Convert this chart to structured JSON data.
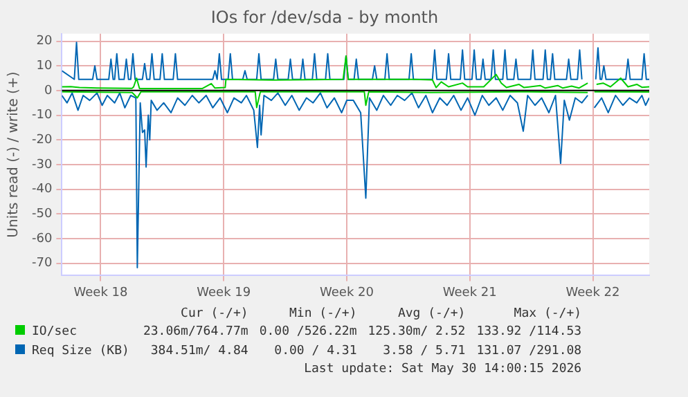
{
  "chart_data": {
    "type": "line",
    "title": "IOs for /dev/sda - by month",
    "ylabel": "Units read (-) / write (+)",
    "xlim": [
      "2026-04-28T08:00",
      "2026-05-31T18:00"
    ],
    "xticks": [
      {
        "value": "2026-04-30T13:00",
        "label": "Week 18"
      },
      {
        "value": "2026-05-07T13:00",
        "label": "Week 19"
      },
      {
        "value": "2026-05-14T13:00",
        "label": "Week 20"
      },
      {
        "value": "2026-05-21T13:00",
        "label": "Week 21"
      },
      {
        "value": "2026-05-28T13:00",
        "label": "Week 22"
      }
    ],
    "ylim": [
      -75,
      23
    ],
    "yticks": [
      -70,
      -60,
      -50,
      -40,
      -30,
      -20,
      -10,
      0,
      10,
      20
    ],
    "grid": true,
    "legend": "bottom",
    "ref_lines": [
      {
        "axis": "y",
        "value": 0,
        "color": "#000000"
      }
    ],
    "series": [
      {
        "color": "#00cc00",
        "x": [
          "2026-04-28T08:00",
          "2026-05-02T08:00",
          "2026-05-02T15:00",
          "2026-05-02T20:00",
          "2026-05-09T08:00",
          "2026-05-09T10:00",
          "2026-05-09T15:00",
          "2026-05-15T13:00",
          "2026-05-15T15:00",
          "2026-05-15T19:00",
          "2026-05-19T08:00",
          "2026-05-24T08:00",
          "2026-05-28T06:00",
          "2026-05-28T10:00",
          "2026-05-28T15:00",
          "2026-05-31T18:00"
        ],
        "values": [
          -0.5,
          -0.8,
          -3,
          -0.5,
          -0.5,
          -6.9,
          -0.5,
          -0.5,
          -6,
          -0.5,
          -0.8,
          -0.5,
          -0.8,
          null,
          -0.5,
          -0.6
        ]
      },
      {
        "name": "IO/sec",
        "color": "#00cc00",
        "x": [
          "2026-04-28T08:00",
          "2026-04-28T20:00",
          "2026-04-29T08:00",
          "2026-04-30T08:00",
          "2026-05-02T08:00",
          "2026-05-02T10:00",
          "2026-05-02T14:00",
          "2026-05-02T18:00",
          "2026-05-04T08:00",
          "2026-05-06T08:00",
          "2026-05-06T20:00",
          "2026-05-07T01:00",
          "2026-05-07T15:00",
          "2026-05-07T16:00",
          "2026-05-10T08:00",
          "2026-05-14T08:00",
          "2026-05-14T12:00",
          "2026-05-14T15:00",
          "2026-05-18T08:00",
          "2026-05-19T10:00",
          "2026-05-19T15:00",
          "2026-05-19T22:00",
          "2026-05-20T08:00",
          "2026-05-21T03:00",
          "2026-05-21T10:00",
          "2026-05-22T08:00",
          "2026-05-23T01:00",
          "2026-05-23T08:00",
          "2026-05-23T15:00",
          "2026-05-24T08:00",
          "2026-05-24T15:00",
          "2026-05-25T13:00",
          "2026-05-25T20:00",
          "2026-05-26T13:00",
          "2026-05-26T20:00",
          "2026-05-27T08:00",
          "2026-05-27T18:00",
          "2026-05-28T06:00",
          "2026-05-28T10:00",
          "2026-05-28T18:00",
          "2026-05-29T03:00",
          "2026-05-29T13:00",
          "2026-05-30T03:00",
          "2026-05-30T13:00",
          "2026-05-31T01:00",
          "2026-05-31T08:00",
          "2026-05-31T18:00"
        ],
        "values": [
          1.5,
          1.6,
          1.2,
          1.0,
          0.9,
          1.5,
          5,
          0.8,
          0.8,
          0.8,
          2.8,
          1,
          1.2,
          4.5,
          4.2,
          4.5,
          14,
          4.5,
          4.5,
          4.3,
          1.2,
          3.5,
          1.5,
          3,
          1.5,
          1.5,
          6.5,
          3,
          1.2,
          2.5,
          1.2,
          2,
          1,
          2,
          1,
          1.8,
          1,
          3,
          null,
          2.5,
          3,
          1.5,
          5,
          1.5,
          2.5,
          1.3,
          1.5
        ]
      },
      {
        "color": "#0066b3",
        "x": [
          "2026-04-28T08:00",
          "2026-04-28T15:00",
          "2026-04-28T22:00",
          "2026-04-29T06:00",
          "2026-04-29T13:00",
          "2026-04-29T22:00",
          "2026-04-30T08:00",
          "2026-04-30T15:00",
          "2026-04-30T22:00",
          "2026-05-01T08:00",
          "2026-05-01T15:00",
          "2026-05-01T22:00",
          "2026-05-02T06:00",
          "2026-05-02T13:00",
          "2026-05-02T15:00",
          "2026-05-02T19:00",
          "2026-05-02T22:00",
          "2026-05-03T01:00",
          "2026-05-03T03:00",
          "2026-05-03T06:00",
          "2026-05-03T08:00",
          "2026-05-03T10:00",
          "2026-05-03T18:00",
          "2026-05-04T03:00",
          "2026-05-04T13:00",
          "2026-05-04T22:00",
          "2026-05-05T08:00",
          "2026-05-05T18:00",
          "2026-05-06T03:00",
          "2026-05-06T13:00",
          "2026-05-06T22:00",
          "2026-05-07T08:00",
          "2026-05-07T18:00",
          "2026-05-08T03:00",
          "2026-05-08T13:00",
          "2026-05-08T20:00",
          "2026-05-09T06:00",
          "2026-05-09T11:00",
          "2026-05-09T14:00",
          "2026-05-09T16:00",
          "2026-05-09T20:00",
          "2026-05-10T06:00",
          "2026-05-10T15:00",
          "2026-05-11T01:00",
          "2026-05-11T10:00",
          "2026-05-11T20:00",
          "2026-05-12T06:00",
          "2026-05-12T15:00",
          "2026-05-13T01:00",
          "2026-05-13T10:00",
          "2026-05-13T20:00",
          "2026-05-14T06:00",
          "2026-05-14T13:00",
          "2026-05-14T22:00",
          "2026-05-15T08:00",
          "2026-05-15T15:00",
          "2026-05-15T20:00",
          "2026-05-16T06:00",
          "2026-05-16T15:00",
          "2026-05-17T01:00",
          "2026-05-17T10:00",
          "2026-05-17T20:00",
          "2026-05-18T06:00",
          "2026-05-18T15:00",
          "2026-05-19T01:00",
          "2026-05-19T10:00",
          "2026-05-19T20:00",
          "2026-05-20T06:00",
          "2026-05-20T15:00",
          "2026-05-21T01:00",
          "2026-05-21T10:00",
          "2026-05-21T20:00",
          "2026-05-22T06:00",
          "2026-05-22T15:00",
          "2026-05-23T01:00",
          "2026-05-23T10:00",
          "2026-05-23T20:00",
          "2026-05-24T06:00",
          "2026-05-24T14:00",
          "2026-05-24T20:00",
          "2026-05-25T06:00",
          "2026-05-25T15:00",
          "2026-05-26T01:00",
          "2026-05-26T10:00",
          "2026-05-26T17:00",
          "2026-05-26T22:00",
          "2026-05-27T05:00",
          "2026-05-27T13:00",
          "2026-05-27T22:00",
          "2026-05-28T06:00",
          "2026-05-28T10:00",
          "2026-05-28T15:00",
          "2026-05-29T01:00",
          "2026-05-29T10:00",
          "2026-05-29T20:00",
          "2026-05-30T06:00",
          "2026-05-30T15:00",
          "2026-05-31T01:00",
          "2026-05-31T08:00",
          "2026-05-31T13:00",
          "2026-05-31T18:00"
        ],
        "values": [
          -2,
          -5,
          -1,
          -8,
          -2,
          -4,
          -1,
          -6,
          -2,
          -5,
          -1,
          -7,
          -2,
          -3,
          -71.8,
          -5,
          -17,
          -16,
          -31,
          -10,
          -20,
          -4,
          -8,
          -5,
          -9,
          -3,
          -6,
          -2,
          -5,
          -2,
          -7,
          -3,
          -9,
          -3,
          -5,
          -2,
          -8,
          -23.1,
          -6,
          -18,
          -2,
          -4,
          -1,
          -6,
          -2,
          -8,
          -3,
          -5,
          -1,
          -7,
          -3,
          -9,
          -4,
          -4,
          -9,
          -43.6,
          -3,
          -8,
          -2,
          -6,
          -2,
          -4,
          -1,
          -7,
          -2,
          -9,
          -3,
          -6,
          -2,
          -8,
          -3,
          -10,
          -2,
          -6,
          -3,
          -8,
          -2,
          -5,
          -16.5,
          -2,
          -6,
          -3,
          -9,
          -2,
          -29.5,
          -4,
          -12,
          -3,
          -5,
          -2,
          null,
          -7,
          -3,
          -9,
          -2,
          -6,
          -3,
          -5,
          -2,
          -6,
          -3
        ]
      },
      {
        "name": "Req Size (KB)",
        "color": "#0066b3",
        "x": [
          "2026-04-28T08:00",
          "2026-04-29T01:00",
          "2026-04-29T04:00",
          "2026-04-29T07:00",
          "2026-04-30T02:00",
          "2026-04-30T05:00",
          "2026-04-30T08:00",
          "2026-05-01T00:00",
          "2026-05-01T03:00",
          "2026-05-01T06:00",
          "2026-05-01T08:00",
          "2026-05-01T11:00",
          "2026-05-01T14:00",
          "2026-05-01T21:00",
          "2026-05-02T00:00",
          "2026-05-02T03:00",
          "2026-05-02T06:00",
          "2026-05-02T09:00",
          "2026-05-02T12:00",
          "2026-05-02T22:00",
          "2026-05-03T01:00",
          "2026-05-03T04:00",
          "2026-05-03T08:00",
          "2026-05-03T11:00",
          "2026-05-03T14:00",
          "2026-05-03T22:00",
          "2026-05-04T01:00",
          "2026-05-04T04:00",
          "2026-05-04T16:00",
          "2026-05-04T19:00",
          "2026-05-04T22:00",
          "2026-05-06T22:00",
          "2026-05-07T01:00",
          "2026-05-07T04:00",
          "2026-05-07T07:00",
          "2026-05-07T10:00",
          "2026-05-07T19:00",
          "2026-05-07T22:00",
          "2026-05-08T01:00",
          "2026-05-08T15:00",
          "2026-05-08T18:00",
          "2026-05-08T21:00",
          "2026-05-09T10:00",
          "2026-05-09T13:00",
          "2026-05-09T16:00",
          "2026-05-10T09:00",
          "2026-05-10T12:00",
          "2026-05-10T15:00",
          "2026-05-11T05:00",
          "2026-05-11T08:00",
          "2026-05-11T11:00",
          "2026-05-11T22:00",
          "2026-05-12T01:00",
          "2026-05-12T04:00",
          "2026-05-12T14:00",
          "2026-05-12T17:00",
          "2026-05-12T20:00",
          "2026-05-13T08:00",
          "2026-05-13T11:00",
          "2026-05-13T14:00",
          "2026-05-14T09:00",
          "2026-05-14T12:00",
          "2026-05-14T15:00",
          "2026-05-14T23:00",
          "2026-05-15T02:00",
          "2026-05-15T05:00",
          "2026-05-16T00:00",
          "2026-05-16T03:00",
          "2026-05-16T06:00",
          "2026-05-16T17:00",
          "2026-05-16T20:00",
          "2026-05-16T23:00",
          "2026-05-18T02:00",
          "2026-05-18T05:00",
          "2026-05-18T08:00",
          "2026-05-19T10:00",
          "2026-05-19T13:00",
          "2026-05-19T16:00",
          "2026-05-20T05:00",
          "2026-05-20T08:00",
          "2026-05-20T11:00",
          "2026-05-21T00:00",
          "2026-05-21T03:00",
          "2026-05-21T06:00",
          "2026-05-21T16:00",
          "2026-05-21T19:00",
          "2026-05-21T22:00",
          "2026-05-22T04:00",
          "2026-05-22T07:00",
          "2026-05-22T10:00",
          "2026-05-22T18:00",
          "2026-05-22T21:00",
          "2026-05-23T00:00",
          "2026-05-23T10:00",
          "2026-05-23T13:00",
          "2026-05-23T16:00",
          "2026-05-24T01:00",
          "2026-05-24T04:00",
          "2026-05-24T07:00",
          "2026-05-25T00:00",
          "2026-05-25T03:00",
          "2026-05-25T06:00",
          "2026-05-25T17:00",
          "2026-05-25T20:00",
          "2026-05-25T23:00",
          "2026-05-26T03:00",
          "2026-05-26T06:00",
          "2026-05-26T09:00",
          "2026-05-27T01:00",
          "2026-05-27T04:00",
          "2026-05-27T07:00",
          "2026-05-27T16:00",
          "2026-05-27T19:00",
          "2026-05-27T22:00",
          "2026-05-28T08:00",
          "2026-05-28T17:00",
          "2026-05-28T20:00",
          "2026-05-28T23:00",
          "2026-05-29T01:00",
          "2026-05-29T04:00",
          "2026-05-29T07:00",
          "2026-05-30T10:00",
          "2026-05-30T13:00",
          "2026-05-30T16:00",
          "2026-05-31T08:00",
          "2026-05-31T11:00",
          "2026-05-31T14:00",
          "2026-05-31T18:00"
        ],
        "values": [
          8,
          4.5,
          19.5,
          4.5,
          4.5,
          10,
          4.5,
          4.5,
          12.7,
          4.5,
          4.5,
          14.9,
          4.5,
          4.5,
          12.7,
          4.5,
          4.5,
          14.9,
          4.5,
          4.5,
          10.9,
          4.5,
          4.5,
          14.9,
          4.5,
          4.5,
          14.9,
          4.5,
          4.5,
          14.9,
          4.5,
          4.5,
          8,
          4.5,
          14.9,
          4.5,
          4.5,
          14.9,
          4.5,
          4.5,
          8,
          4.5,
          4.5,
          14.9,
          4.5,
          4.5,
          12.7,
          4.5,
          4.5,
          12.7,
          4.5,
          4.5,
          12.7,
          4.5,
          4.5,
          14.9,
          4.5,
          4.5,
          14.9,
          4.5,
          4.5,
          14,
          4.5,
          4.5,
          12.7,
          4.5,
          4.5,
          10,
          4.5,
          4.5,
          14.9,
          4.5,
          4.5,
          14.9,
          4.5,
          4.5,
          16.4,
          4.5,
          4.5,
          14.9,
          4.5,
          4.5,
          16.4,
          4.5,
          4.5,
          16.4,
          4.5,
          4.5,
          12.7,
          4.5,
          4.5,
          16.4,
          4.5,
          4.5,
          16.4,
          4.5,
          4.5,
          12.7,
          4.5,
          4.5,
          16.4,
          4.5,
          4.5,
          16.4,
          4.5,
          4.5,
          14.9,
          4.5,
          4.5,
          12.7,
          4.5,
          4.5,
          16.4,
          4.5,
          null,
          4.5,
          17.3,
          4.5,
          4.5,
          10,
          4.5,
          4.5,
          12.7,
          4.5,
          4.5,
          14.9,
          4.5,
          4.5
        ]
      }
    ],
    "annotations": [
      "Cur (-/+)",
      "Min (-/+)",
      "Avg (-/+)",
      "Max (-/+)",
      "23.06m/764.77m",
      "0.00 /526.22m",
      "125.30m/ 2.52",
      "133.92 /114.53",
      "384.51m/ 4.84",
      "0.00 / 4.31",
      "3.58 / 5.71",
      "131.07 /291.08",
      "Last update: Sat May 30 14:00:15 2026"
    ]
  }
}
